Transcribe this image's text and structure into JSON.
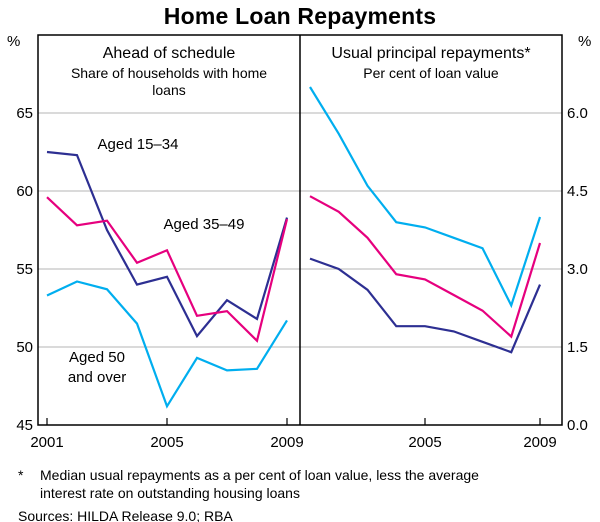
{
  "title": "Home Loan Repayments",
  "panels": {
    "left": {
      "title": "Ahead of schedule",
      "subtitle_lines": [
        "Share of households with home",
        "loans"
      ]
    },
    "right": {
      "title": "Usual principal repayments*",
      "subtitle": "Per cent of loan value"
    }
  },
  "axes": {
    "left_unit": "%",
    "right_unit": "%",
    "left_ticks": [
      "65",
      "60",
      "55",
      "50",
      "45"
    ],
    "right_ticks": [
      "6.0",
      "4.5",
      "3.0",
      "1.5",
      "0.0"
    ],
    "x_left": [
      "2001",
      "2005",
      "2009"
    ],
    "x_right": [
      "2005",
      "2009"
    ]
  },
  "annotations": {
    "aged_15_34": "Aged 15–34",
    "aged_35_49": "Aged 35–49",
    "aged_50_line1": "Aged 50",
    "aged_50_line2": "and over"
  },
  "colors": {
    "aged_15_34": "#2d2f92",
    "aged_35_49": "#e6007e",
    "aged_50_over": "#00aeef",
    "grid": "#b5b5b5"
  },
  "footnote": {
    "marker": "*",
    "lines": [
      "Median usual repayments as a per cent of loan value, less the average",
      "interest rate on outstanding housing loans"
    ]
  },
  "sources": "Sources: HILDA Release 9.0; RBA",
  "chart_data": [
    {
      "type": "line",
      "title": "Ahead of schedule",
      "subtitle": "Share of households with home loans",
      "ylabel": "%",
      "ylim": [
        45,
        70
      ],
      "yticks": [
        45,
        50,
        55,
        60,
        65
      ],
      "grid": true,
      "x": [
        2001,
        2002,
        2003,
        2004,
        2005,
        2006,
        2007,
        2008,
        2009
      ],
      "series": [
        {
          "name": "Aged 15–34",
          "color": "#2d2f92",
          "values": [
            62.5,
            62.3,
            57.5,
            54.0,
            54.5,
            50.7,
            53.0,
            51.8,
            58.3
          ]
        },
        {
          "name": "Aged 35–49",
          "color": "#e6007e",
          "values": [
            59.6,
            57.8,
            58.1,
            55.4,
            56.2,
            52.0,
            52.3,
            50.4,
            58.2
          ]
        },
        {
          "name": "Aged 50 and over",
          "color": "#00aeef",
          "values": [
            53.3,
            54.2,
            53.7,
            51.5,
            46.2,
            49.3,
            48.5,
            48.6,
            51.7
          ]
        }
      ]
    },
    {
      "type": "line",
      "title": "Usual principal repayments*",
      "subtitle": "Per cent of loan value",
      "ylabel": "%",
      "ylim": [
        0,
        7.5
      ],
      "yticks": [
        0.0,
        1.5,
        3.0,
        4.5,
        6.0
      ],
      "grid": true,
      "x": [
        2001,
        2002,
        2003,
        2004,
        2005,
        2006,
        2007,
        2008,
        2009
      ],
      "series": [
        {
          "name": "Aged 15–34",
          "color": "#2d2f92",
          "values": [
            3.2,
            3.0,
            2.6,
            1.9,
            1.9,
            1.8,
            1.6,
            1.4,
            2.7
          ]
        },
        {
          "name": "Aged 35–49",
          "color": "#e6007e",
          "values": [
            4.4,
            4.1,
            3.6,
            2.9,
            2.8,
            2.5,
            2.2,
            1.7,
            3.5
          ]
        },
        {
          "name": "Aged 50 and over",
          "color": "#00aeef",
          "values": [
            6.5,
            5.6,
            4.6,
            3.9,
            3.8,
            3.6,
            3.4,
            2.3,
            4.0
          ]
        }
      ]
    }
  ]
}
